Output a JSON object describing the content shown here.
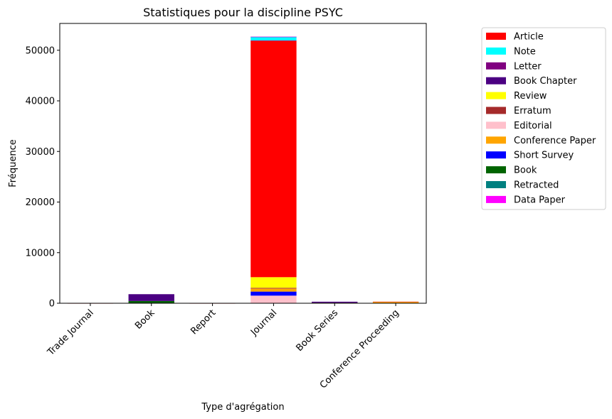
{
  "chart_data": {
    "type": "bar",
    "stacked": true,
    "title": "Statistiques pour la discipline PSYC",
    "xlabel": "Type d'agrégation",
    "ylabel": "Fréquence",
    "ylim": [
      0,
      55300
    ],
    "yticks": [
      0,
      10000,
      20000,
      30000,
      40000,
      50000
    ],
    "yticklabels": [
      "0",
      "10000",
      "20000",
      "30000",
      "40000",
      "50000"
    ],
    "legend_position": "outside-top-right",
    "categories": [
      "Trade Journal",
      "Book",
      "Report",
      "Journal",
      "Book Series",
      "Conference Proceeding"
    ],
    "series": [
      {
        "name": "Article",
        "color": "#ff0000",
        "values": [
          5,
          30,
          5,
          46700,
          80,
          100
        ]
      },
      {
        "name": "Note",
        "color": "#00ffff",
        "values": [
          0,
          0,
          0,
          700,
          0,
          0
        ]
      },
      {
        "name": "Letter",
        "color": "#800080",
        "values": [
          0,
          0,
          0,
          100,
          0,
          0
        ]
      },
      {
        "name": "Book Chapter",
        "color": "#4b0082",
        "values": [
          0,
          1350,
          0,
          0,
          200,
          0
        ]
      },
      {
        "name": "Review",
        "color": "#ffff00",
        "values": [
          0,
          30,
          0,
          2100,
          10,
          10
        ]
      },
      {
        "name": "Erratum",
        "color": "#a52a2a",
        "values": [
          0,
          0,
          0,
          150,
          0,
          0
        ]
      },
      {
        "name": "Editorial",
        "color": "#ffc0cb",
        "values": [
          0,
          0,
          0,
          1500,
          0,
          0
        ]
      },
      {
        "name": "Conference Paper",
        "color": "#ffa500",
        "values": [
          0,
          0,
          0,
          600,
          0,
          200
        ]
      },
      {
        "name": "Short Survey",
        "color": "#0000ff",
        "values": [
          0,
          0,
          0,
          800,
          0,
          0
        ]
      },
      {
        "name": "Book",
        "color": "#006400",
        "values": [
          0,
          380,
          0,
          0,
          10,
          0
        ]
      },
      {
        "name": "Retracted",
        "color": "#008080",
        "values": [
          0,
          0,
          0,
          20,
          0,
          0
        ]
      },
      {
        "name": "Data Paper",
        "color": "#ff00ff",
        "values": [
          0,
          0,
          0,
          5,
          0,
          0
        ]
      }
    ],
    "stack_order": [
      "Editorial",
      "Short Survey",
      "Conference Paper",
      "Erratum",
      "Review",
      "Article",
      "Letter",
      "Note",
      "Book",
      "Book Chapter",
      "Retracted",
      "Data Paper"
    ]
  }
}
